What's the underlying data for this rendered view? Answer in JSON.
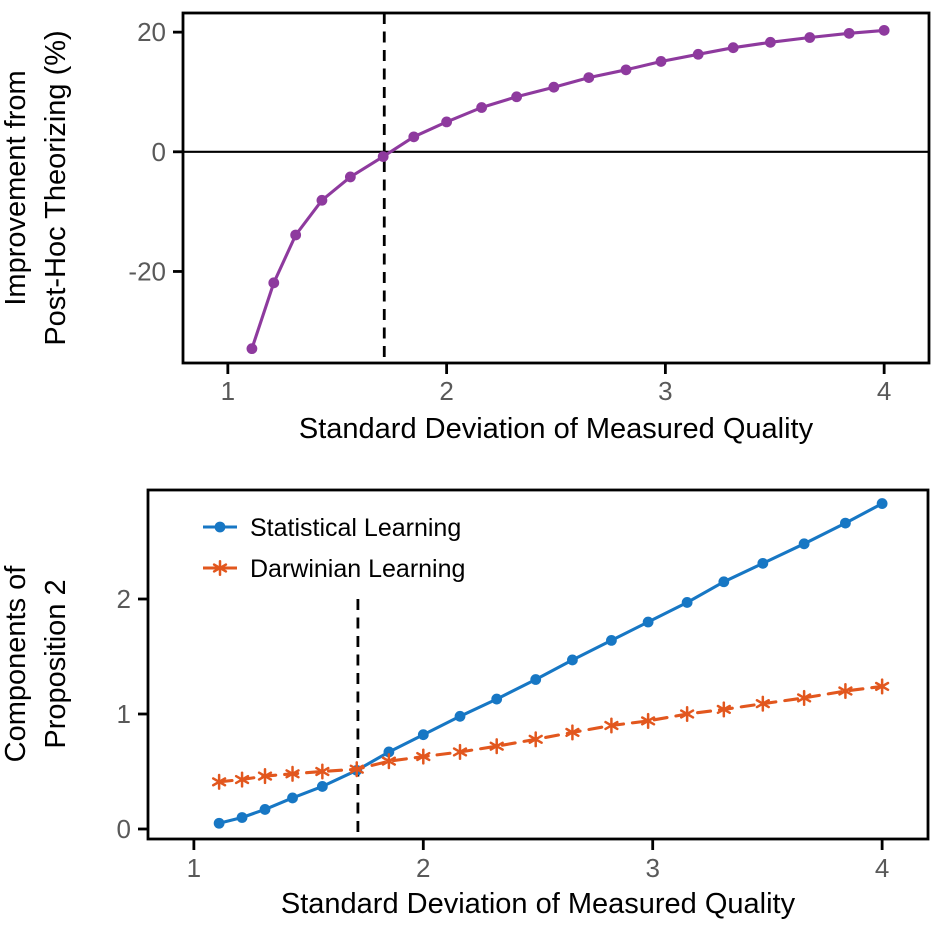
{
  "page": {
    "background": "#ffffff",
    "description_colors": {
      "axis": "#000000",
      "tick_label": "#595959",
      "label_text": "#000000",
      "purple_series": "#8e3a9e",
      "blue_series": "#1777c4",
      "orange_series": "#e2571e"
    }
  },
  "chart_data": [
    {
      "id": "improvement",
      "type": "line",
      "title": "",
      "xlabel": "Standard Deviation of Measured Quality",
      "ylabel_lines": [
        "Improvement from",
        "Post-Hoc Theorizing (%)"
      ],
      "xlim": [
        0.795,
        4.205
      ],
      "ylim": [
        -35.3,
        23.2
      ],
      "x_ticks": [
        "1",
        "2",
        "3",
        "4"
      ],
      "x_tick_values": [
        1,
        2,
        3,
        4
      ],
      "y_ticks": [
        "20",
        "0",
        "-20"
      ],
      "y_tick_values": [
        20,
        0,
        -20
      ],
      "grid": false,
      "zero_line": true,
      "vline": {
        "x": 1.715,
        "style": "dashed",
        "color": "#000000",
        "y_top": null
      },
      "series": [
        {
          "name": "Improvement from Post-Hoc Theorizing",
          "color": "#8e3a9e",
          "marker": "circle",
          "line_style": "solid",
          "x": [
            1.11,
            1.21,
            1.31,
            1.43,
            1.56,
            1.71,
            1.85,
            2.0,
            2.16,
            2.32,
            2.49,
            2.65,
            2.82,
            2.98,
            3.15,
            3.31,
            3.48,
            3.66,
            3.84,
            4.0
          ],
          "y": [
            -32.9,
            -21.9,
            -13.9,
            -8.1,
            -4.2,
            -0.8,
            2.5,
            5.0,
            7.4,
            9.2,
            10.8,
            12.4,
            13.7,
            15.1,
            16.3,
            17.4,
            18.3,
            19.1,
            19.8,
            20.3
          ]
        }
      ],
      "legend": null
    },
    {
      "id": "components",
      "type": "line",
      "title": "",
      "xlabel": "Standard Deviation of Measured Quality",
      "ylabel_lines": [
        "Components of",
        "Proposition 2"
      ],
      "xlim": [
        0.8,
        4.2
      ],
      "ylim": [
        -0.087,
        2.948
      ],
      "x_ticks": [
        "1",
        "2",
        "3",
        "4"
      ],
      "x_tick_values": [
        1,
        2,
        3,
        4
      ],
      "y_ticks": [
        "0",
        "1",
        "2"
      ],
      "y_tick_values": [
        0,
        1,
        2
      ],
      "grid": false,
      "zero_line": false,
      "vline": {
        "x": 1.715,
        "style": "dashed",
        "color": "#000000",
        "y_top": 2.0
      },
      "series": [
        {
          "name": "Statistical Learning",
          "color": "#1777c4",
          "marker": "circle",
          "line_style": "solid",
          "x": [
            1.11,
            1.21,
            1.31,
            1.43,
            1.56,
            1.71,
            1.85,
            2.0,
            2.16,
            2.32,
            2.49,
            2.65,
            2.82,
            2.98,
            3.15,
            3.31,
            3.48,
            3.66,
            3.84,
            4.0
          ],
          "y": [
            0.05,
            0.1,
            0.17,
            0.27,
            0.37,
            0.51,
            0.67,
            0.82,
            0.98,
            1.13,
            1.3,
            1.47,
            1.64,
            1.8,
            1.97,
            2.15,
            2.31,
            2.48,
            2.66,
            2.83
          ]
        },
        {
          "name": "Darwinian Learning",
          "color": "#e2571e",
          "marker": "asterisk",
          "line_style": "dashed",
          "x": [
            1.11,
            1.21,
            1.31,
            1.43,
            1.56,
            1.71,
            1.85,
            2.0,
            2.16,
            2.32,
            2.49,
            2.65,
            2.82,
            2.98,
            3.15,
            3.31,
            3.48,
            3.66,
            3.84,
            4.0
          ],
          "y": [
            0.41,
            0.43,
            0.46,
            0.48,
            0.5,
            0.52,
            0.59,
            0.63,
            0.67,
            0.72,
            0.78,
            0.84,
            0.9,
            0.94,
            1.0,
            1.04,
            1.09,
            1.14,
            1.2,
            1.24
          ]
        }
      ],
      "legend": {
        "position": "top-left",
        "entries": [
          "Statistical Learning",
          "Darwinian Learning"
        ]
      }
    }
  ]
}
